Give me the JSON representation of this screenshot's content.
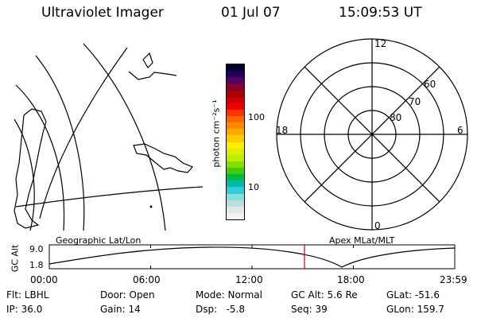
{
  "header": {
    "title": "Ultraviolet Imager",
    "date": "01 Jul 07",
    "time": "15:09:53 UT"
  },
  "colorbar": {
    "unit_label": "photon cm⁻²s⁻¹",
    "tick_labels": [
      "100",
      "10"
    ],
    "colors": [
      "#000033",
      "#220055",
      "#550066",
      "#880033",
      "#aa0000",
      "#cc0000",
      "#ee0000",
      "#ff3300",
      "#ff6600",
      "#ff8800",
      "#ffaa00",
      "#ffcc00",
      "#ffee00",
      "#ddee00",
      "#bbee00",
      "#88dd00",
      "#44cc00",
      "#00bb44",
      "#00bbaa",
      "#33ccdd",
      "#88dddd",
      "#bbdddd",
      "#dde8e8",
      "#f2f4f4"
    ]
  },
  "polar_plot": {
    "mlt_labels": {
      "top": "12",
      "left": "18",
      "right": "6",
      "bottom": "0"
    },
    "lat_labels": [
      "60",
      "70",
      "80"
    ]
  },
  "timeline": {
    "left_label": "Geographic Lat/Lon",
    "right_label": "Apex MLat/MLT",
    "axis_title": "GC Alt",
    "y_ticks": [
      "9.0",
      "1.8"
    ],
    "x_ticks": [
      "00:00",
      "06:00",
      "12:00",
      "18:00",
      "23:59"
    ],
    "marker_color": "#cc0000"
  },
  "info": {
    "flt": "Flt: LBHL",
    "ip": "IP: 36.0",
    "door": "Door: Open",
    "gain": "Gain: 14",
    "mode": "Mode: Normal",
    "dsp": "Dsp:   -5.8",
    "gc_alt": "GC Alt: 5.6 Re",
    "seq": "Seq: 39",
    "glat": "GLat: -51.6",
    "glon": "GLon: 159.7"
  }
}
